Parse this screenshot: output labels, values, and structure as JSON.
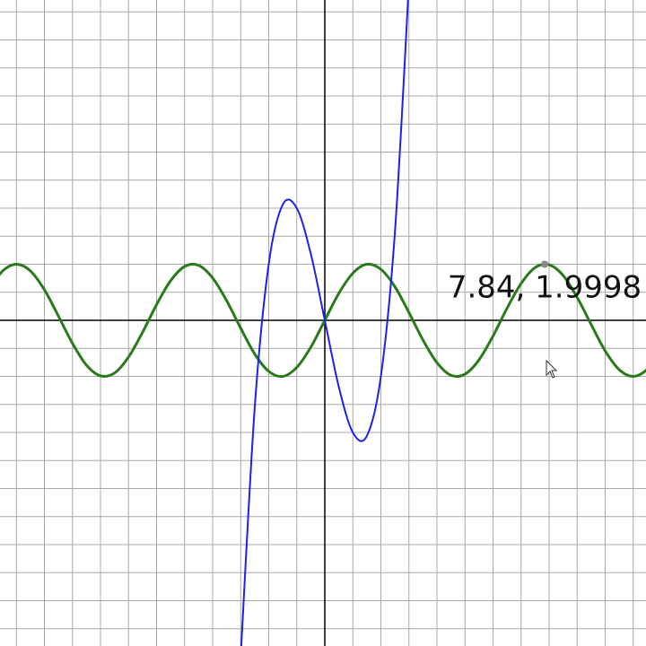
{
  "chart_data": {
    "type": "line",
    "x": [
      -12,
      -11.5,
      -11,
      -10.5,
      -10,
      -9.5,
      -9,
      -8.5,
      -8,
      -7.5,
      -7,
      -6.5,
      -6,
      -5.5,
      -5,
      -4.5,
      -4,
      -3.5,
      -3,
      -2.5,
      -2,
      -1.5,
      -1,
      -0.5,
      0,
      0.5,
      1,
      1.5,
      2,
      2.5,
      3,
      3.5,
      4,
      4.5,
      5,
      5.5,
      6,
      6.5,
      7,
      7.5,
      8,
      8.5,
      9,
      9.5,
      10,
      10.5,
      11,
      11.5,
      12
    ],
    "series": [
      {
        "color": "#2a7a1c",
        "values": [
          1.07,
          1.75,
          2.0,
          1.76,
          1.09,
          0.15,
          -0.82,
          -1.6,
          -1.98,
          -1.88,
          -1.31,
          -0.43,
          0.56,
          1.41,
          1.92,
          1.96,
          1.51,
          0.7,
          -0.28,
          -1.2,
          -1.82,
          -2.0,
          -1.68,
          -0.96,
          0,
          0.96,
          1.68,
          2.0,
          1.82,
          1.2,
          0.28,
          -0.7,
          -1.51,
          -1.96,
          -1.92,
          -1.41,
          -0.56,
          0.43,
          1.31,
          1.88,
          1.98,
          1.6,
          0.82,
          -0.15,
          -1.09,
          -1.76,
          -2.0,
          -1.75,
          -1.07
        ]
      },
      {
        "color": "#2020ee",
        "values": [
          null,
          null,
          null,
          null,
          null,
          null,
          null,
          null,
          null,
          null,
          null,
          null,
          null,
          null,
          null,
          null,
          null,
          null,
          -12,
          -3.125,
          2,
          4.125,
          4,
          2.375,
          0,
          -2.375,
          -4,
          -4.125,
          -2,
          3.125,
          12,
          null,
          null,
          null,
          null,
          null,
          null,
          null,
          null,
          null,
          null,
          null,
          null,
          null,
          null,
          null,
          null,
          null,
          null
        ]
      }
    ],
    "xlim": [
      -11.584,
      11.456
    ],
    "ylim": [
      -11.616,
      11.424
    ],
    "xticks": [
      -11,
      -10,
      -9,
      -8,
      -7,
      -6,
      -5,
      -4,
      -3,
      -2,
      -1,
      0,
      1,
      2,
      3,
      4,
      5,
      6,
      7,
      8,
      9,
      10,
      11
    ],
    "yticks": [
      -11,
      -10,
      -9,
      -8,
      -7,
      -6,
      -5,
      -4,
      -3,
      -2,
      -1,
      0,
      1,
      2,
      3,
      4,
      5,
      6,
      7,
      8,
      9,
      10,
      11
    ],
    "grid": true,
    "point": {
      "x": 7.84,
      "y": 1.9998,
      "label": "7.84, 1.9998"
    }
  }
}
